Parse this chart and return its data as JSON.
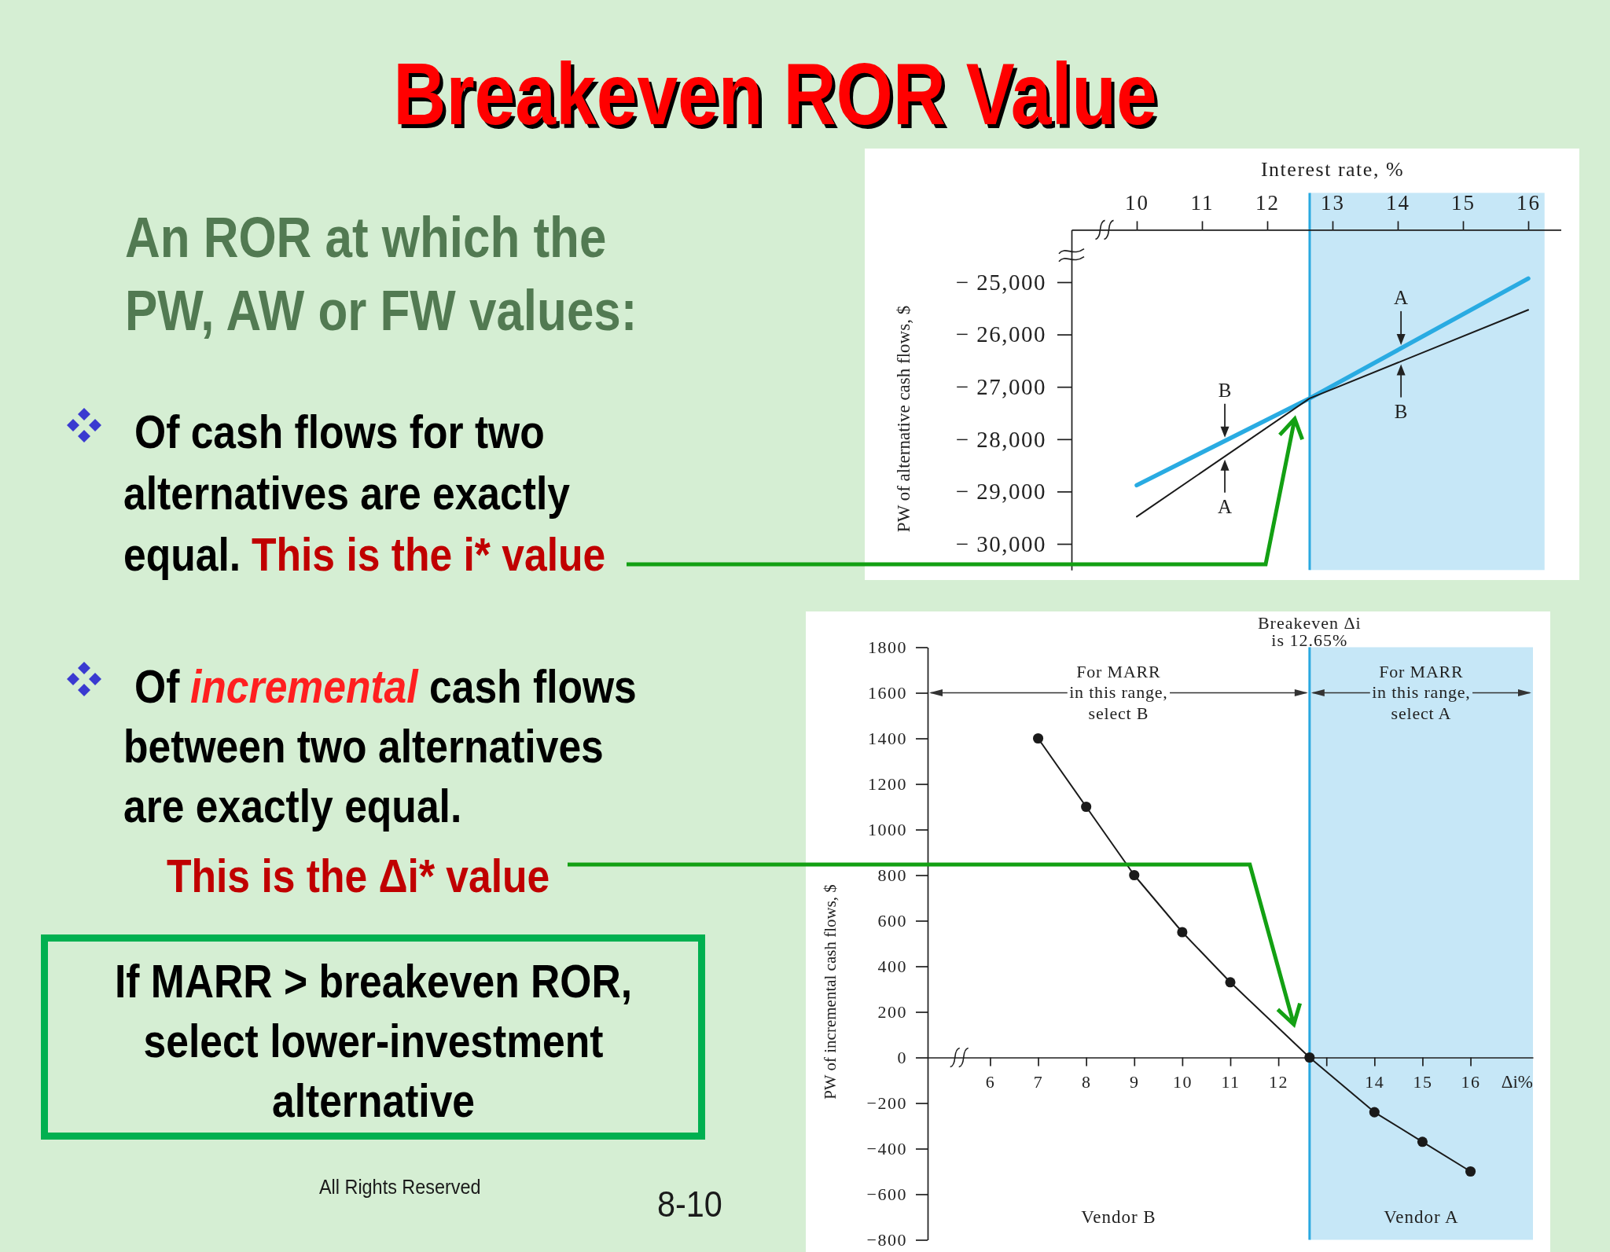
{
  "chart_data": [
    {
      "type": "other",
      "title": "Breakeven ROR Value",
      "subtitle": "An ROR at which the PW, AW or FW values:",
      "annotations": [
        "Of cash flows for two alternatives are exactly equal. This is the i* value",
        "Of incremental cash flows between two alternatives are exactly equal.",
        "This is the Δi* value",
        "If MARR > breakeven ROR, select lower-investment alternative",
        "All Rights Reserved",
        "8-10"
      ]
    },
    {
      "type": "line",
      "xlabel": "Interest rate, %",
      "ylabel": "PW of alternative cash flows, $",
      "xlim": [
        9,
        16.5
      ],
      "xticks": [
        10,
        11,
        12,
        13,
        14,
        15,
        16
      ],
      "ylim": [
        -30500,
        -24000
      ],
      "yticks": [
        {
          "value": -25000,
          "label": "− 25,000"
        },
        {
          "value": -26000,
          "label": "− 26,000"
        },
        {
          "value": -27000,
          "label": "− 27,000"
        },
        {
          "value": -28000,
          "label": "− 28,000"
        },
        {
          "value": -29000,
          "label": "− 29,000"
        },
        {
          "value": -30000,
          "label": "− 30,000"
        }
      ],
      "series": [
        {
          "color": "#29abe2",
          "x": [
            10,
            12.65,
            16
          ],
          "values": [
            -28880,
            -27220,
            -24930
          ]
        },
        {
          "color": "#1a1a1a",
          "x": [
            10,
            12.65,
            16
          ],
          "values": [
            -29480,
            -27220,
            -25530
          ]
        }
      ],
      "bands": [
        {
          "axis": "x",
          "from": 12.65,
          "to": 16.25,
          "color": "#c6e7f7"
        }
      ],
      "ref_lines": [
        {
          "axis": "x",
          "value": 12.65,
          "color": "#29a9e0"
        }
      ],
      "annotations": [
        {
          "text": "B",
          "x": 11.35,
          "y": -28030
        },
        {
          "text": "A",
          "x": 11.35,
          "y": -28330
        },
        {
          "text": "A",
          "x": 14.05,
          "y": -26260
        },
        {
          "text": "B",
          "x": 14.05,
          "y": -26510
        }
      ]
    },
    {
      "type": "line",
      "xlabel": "Δi%",
      "ylabel": "PW of incremental cash flows, $",
      "xlim": [
        4.7,
        17.3
      ],
      "xticks": [
        6,
        7,
        8,
        9,
        10,
        11,
        12,
        {
          "value": 13,
          "label": null
        },
        14,
        15,
        16
      ],
      "ylim": [
        -800,
        1800
      ],
      "yticks": [
        1800,
        1600,
        1400,
        1200,
        1000,
        800,
        600,
        400,
        200,
        0,
        {
          "value": -200,
          "label": "−200"
        },
        {
          "value": -400,
          "label": "−400"
        },
        {
          "value": -600,
          "label": "−600"
        },
        {
          "value": -800,
          "label": "−800"
        }
      ],
      "x": [
        7,
        8,
        9,
        10,
        11,
        12.65,
        14,
        15,
        16
      ],
      "series": [
        {
          "color": "#1a1a1a",
          "values": [
            1400,
            1100,
            800,
            550,
            330,
            0,
            -240,
            -370,
            -500
          ]
        }
      ],
      "marker": "circle",
      "bands": [
        {
          "axis": "x",
          "from": 12.65,
          "to": 17.3,
          "color": "#c6e7f7"
        }
      ],
      "ref_lines": [
        {
          "axis": "x",
          "value": 12.65,
          "label": "Breakeven Δi is 12.65%",
          "color": "#29a9e0"
        }
      ],
      "annotations": [
        {
          "text": "For MARR in this range, select B",
          "x": 12.65,
          "y": 1600
        },
        {
          "text": "For MARR in this range, select A",
          "x": 17.3,
          "y": 1600
        },
        "Vendor B",
        "Vendor A"
      ]
    }
  ]
}
